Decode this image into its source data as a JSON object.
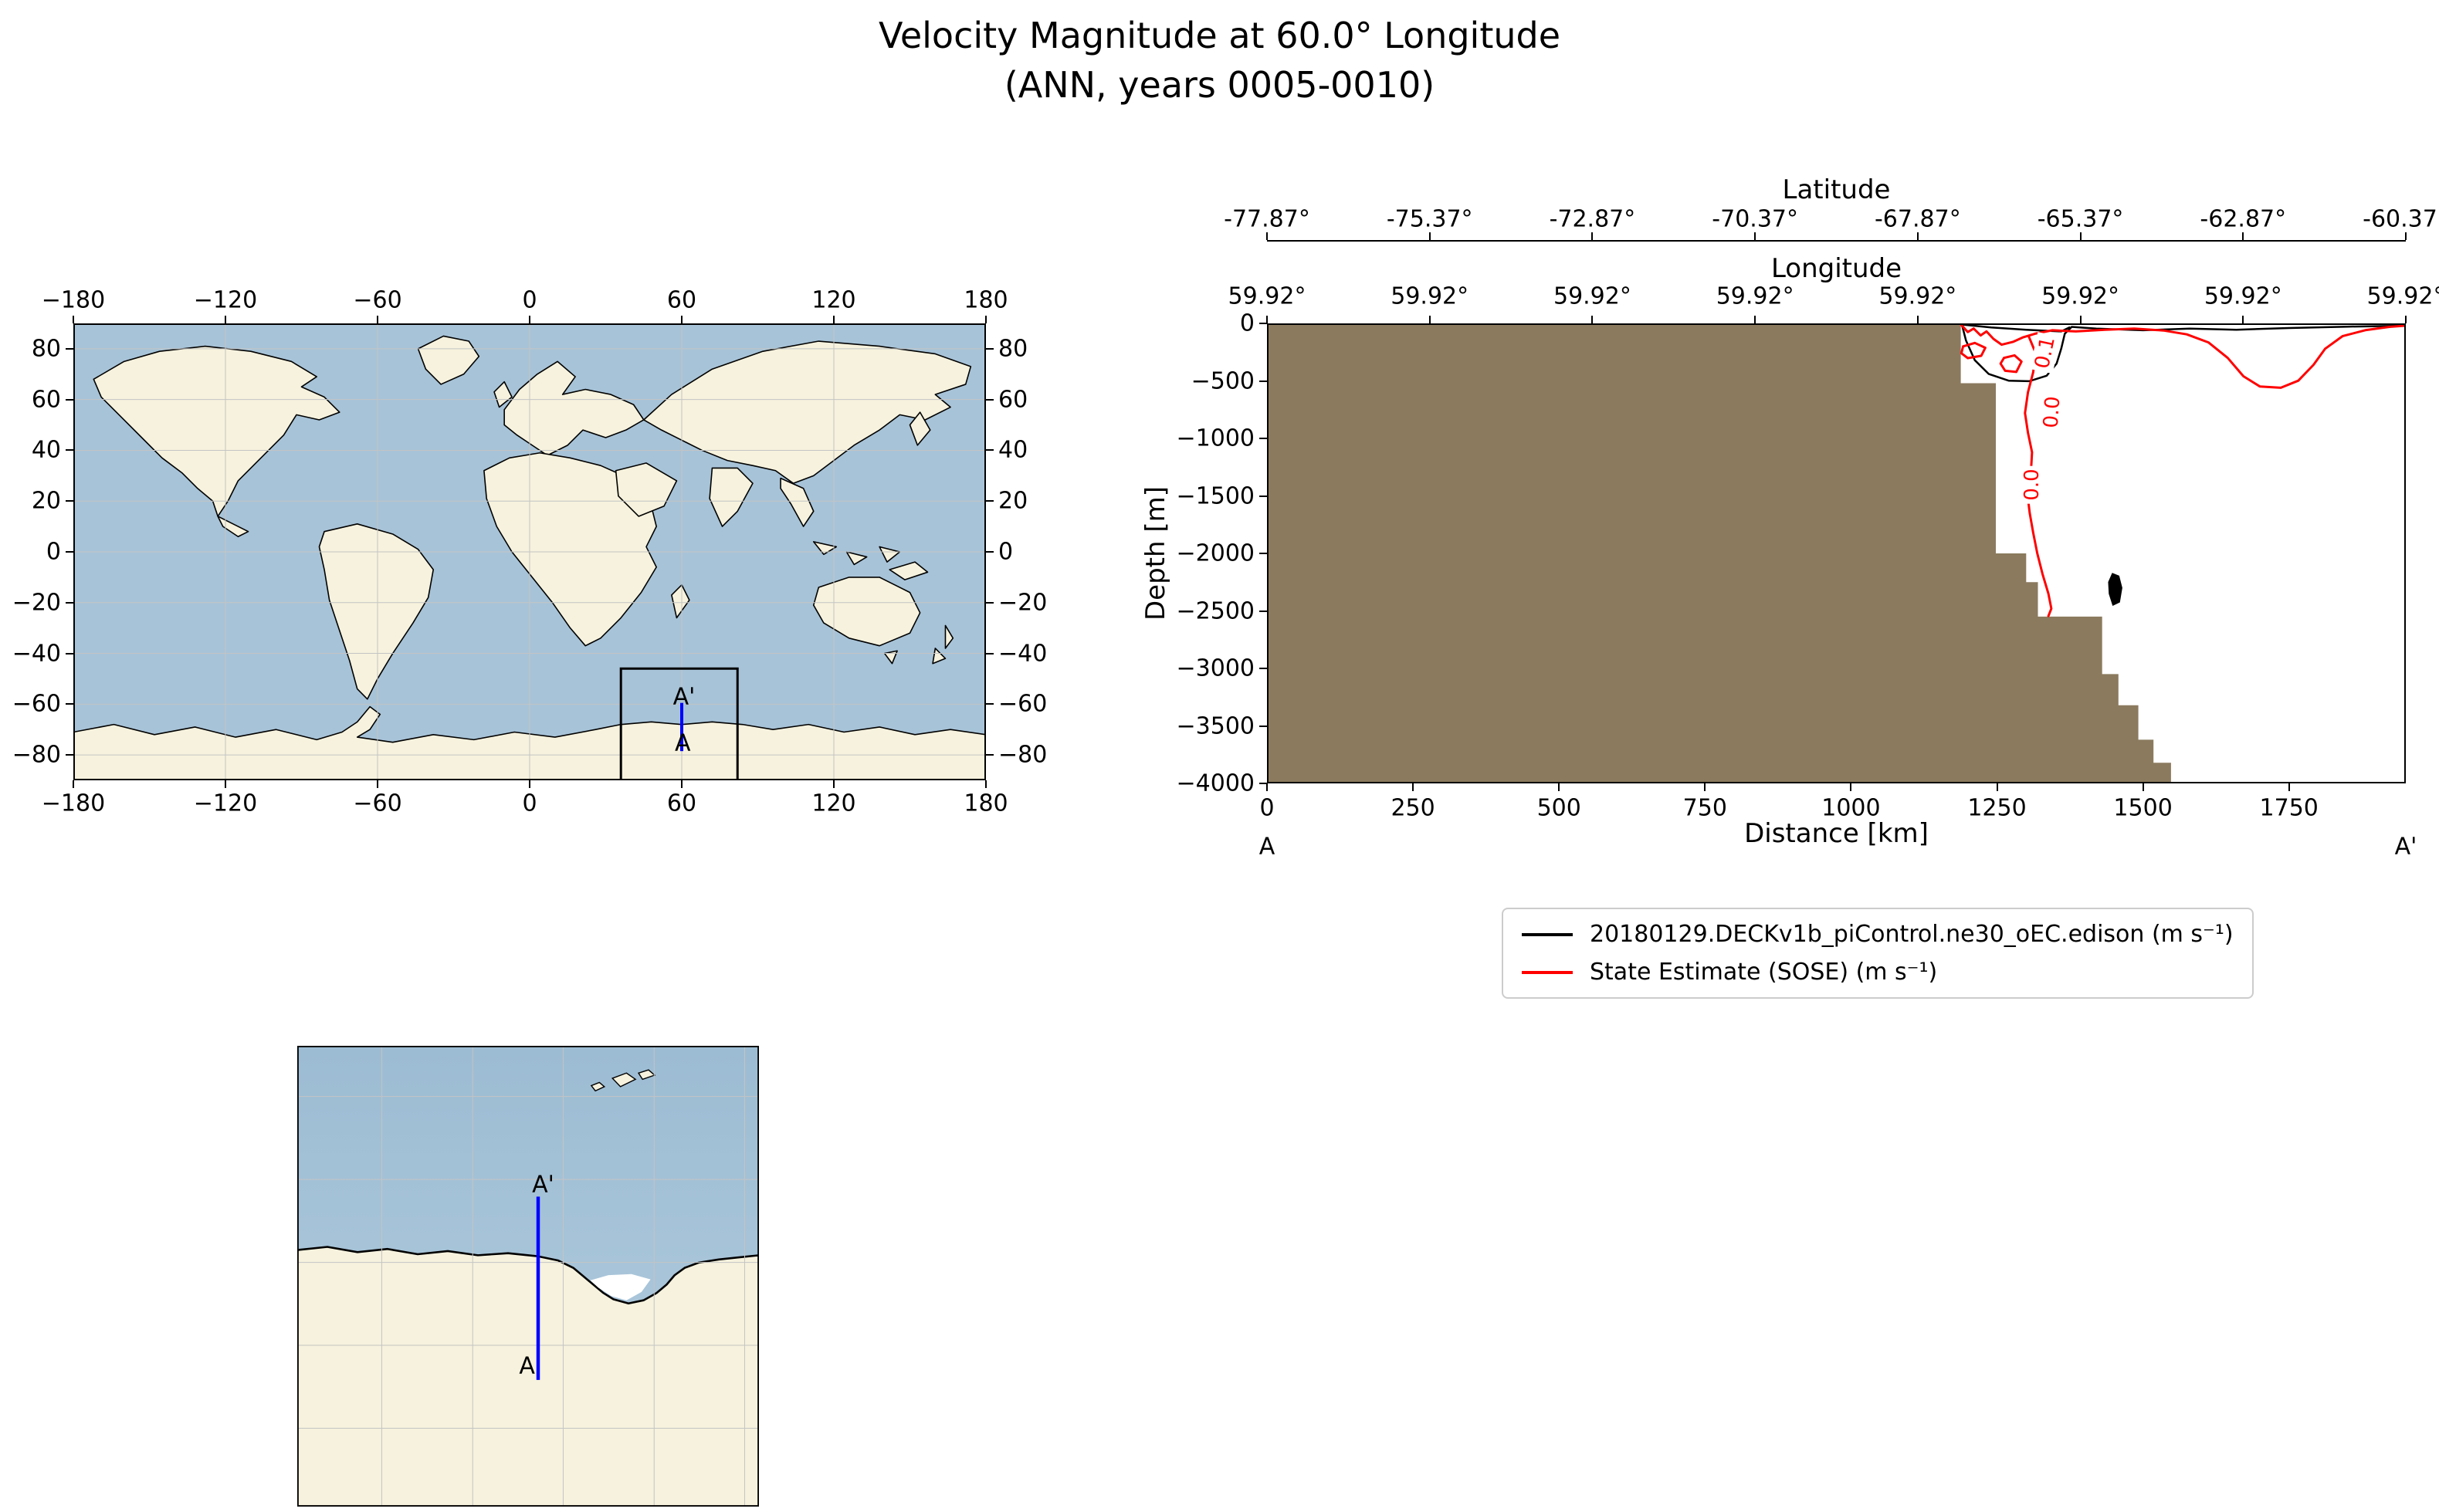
{
  "figure": {
    "title": "Velocity Magnitude at 60.0° Longitude",
    "subtitle": "(ANN, years 0005-0010)"
  },
  "colors": {
    "ocean": "#a7c3d8",
    "ocean_deep": "#9cbcd3",
    "land": "#f6f2dd",
    "coastline": "#000000",
    "grid": "#c4c4c4",
    "bathymetry_fill": "#8b7a5e",
    "transect_line": "#0000ff",
    "roi_box": "#000000",
    "model_contour": "#000000",
    "sose_contour": "#ff0000",
    "ice_shelf": "#ffffff"
  },
  "world_map": {
    "lon_tick_labels": [
      "−180",
      "−120",
      "−60",
      "0",
      "60",
      "120",
      "180"
    ],
    "lon_tick_values": [
      -180,
      -120,
      -60,
      0,
      60,
      120,
      180
    ],
    "lat_tick_labels": [
      "−80",
      "−60",
      "−40",
      "−20",
      "0",
      "20",
      "40",
      "60",
      "80"
    ],
    "lat_tick_values": [
      -80,
      -60,
      -40,
      -20,
      0,
      20,
      40,
      60,
      80
    ],
    "extent": {
      "lon_min": -180,
      "lon_max": 180,
      "lat_min": -90,
      "lat_max": 90
    },
    "roi_box": {
      "lon_min": 36,
      "lon_max": 82,
      "lat_min": -90,
      "lat_max": -46
    },
    "transect": {
      "lon": 60,
      "lat_south": -78.5,
      "lat_north": -59.5
    },
    "labels": {
      "start": "A",
      "end": "A'"
    }
  },
  "zoom_map": {
    "extent": {
      "lon_min": 36,
      "lon_max": 82,
      "lat_min": -90,
      "lat_max": -46
    },
    "transect": {
      "lon": 60,
      "lat_south": -77.9,
      "lat_north": -60.4
    },
    "labels": {
      "start": "A",
      "end": "A'"
    }
  },
  "cross_section": {
    "lat_axis": {
      "label": "Latitude",
      "ticks": [
        "-77.87°",
        "-75.37°",
        "-72.87°",
        "-70.37°",
        "-67.87°",
        "-65.37°",
        "-62.87°",
        "-60.37°"
      ]
    },
    "lon_axis": {
      "label": "Longitude",
      "ticks": [
        "59.92°",
        "59.92°",
        "59.92°",
        "59.92°",
        "59.92°",
        "59.92°",
        "59.92°",
        "59.92°"
      ]
    },
    "xlabel": "Distance [km]",
    "ylabel": "Depth [m]",
    "x_tick_labels": [
      "0",
      "250",
      "500",
      "750",
      "1000",
      "1250",
      "1500",
      "1750"
    ],
    "y_tick_labels": [
      "0",
      "−500",
      "−1000",
      "−1500",
      "−2000",
      "−2500",
      "−3000",
      "−3500",
      "−4000"
    ],
    "endpoints": {
      "start": "A",
      "end": "A'"
    }
  },
  "legend": {
    "entries": [
      {
        "label": "20180129.DECKv1b_piControl.ne30_oEC.edison (m s⁻¹)",
        "color": "#000000"
      },
      {
        "label": "State Estimate (SOSE) (m s⁻¹)",
        "color": "#ff0000"
      }
    ]
  },
  "chart_data": {
    "type": "line",
    "title": "Velocity Magnitude at 60.0° Longitude (ANN, years 0005-0010)",
    "xlabel": "Distance [km]",
    "ylabel": "Depth [m]",
    "xlim": [
      0,
      1950
    ],
    "ylim": [
      -4000,
      0
    ],
    "grid": false,
    "legend_position": "below-right",
    "x_ticks": [
      0,
      250,
      500,
      750,
      1000,
      1250,
      1500,
      1750
    ],
    "y_ticks": [
      0,
      -500,
      -1000,
      -1500,
      -2000,
      -2500,
      -3000,
      -3500,
      -4000
    ],
    "latitude_ticks": [
      -77.87,
      -75.37,
      -72.87,
      -70.37,
      -67.87,
      -65.37,
      -62.87,
      -60.37
    ],
    "longitude_ticks": [
      59.92,
      59.92,
      59.92,
      59.92,
      59.92,
      59.92,
      59.92,
      59.92
    ],
    "bathymetry_surface_profile_km_m": [
      [
        0,
        0
      ],
      [
        1188,
        0
      ],
      [
        1188,
        -520
      ],
      [
        1248,
        -520
      ],
      [
        1248,
        -2000
      ],
      [
        1300,
        -2000
      ],
      [
        1300,
        -2250
      ],
      [
        1320,
        -2250
      ],
      [
        1320,
        -2550
      ],
      [
        1430,
        -2550
      ],
      [
        1430,
        -3050
      ],
      [
        1458,
        -3050
      ],
      [
        1458,
        -3320
      ],
      [
        1492,
        -3320
      ],
      [
        1492,
        -3620
      ],
      [
        1518,
        -3620
      ],
      [
        1518,
        -3820
      ],
      [
        1548,
        -3820
      ],
      [
        1548,
        -4000
      ]
    ],
    "series": [
      {
        "name": "20180129.DECKv1b_piControl.ne30_oEC.edison (m s⁻¹)",
        "color": "#000000",
        "contour_lines_km_m": [
          [
            [
              1190,
              -12
            ],
            [
              1197,
              -150
            ],
            [
              1212,
              -320
            ],
            [
              1236,
              -440
            ],
            [
              1270,
              -498
            ],
            [
              1305,
              -503
            ],
            [
              1335,
              -455
            ],
            [
              1352,
              -350
            ],
            [
              1360,
              -220
            ],
            [
              1366,
              -90
            ],
            [
              1378,
              -30
            ],
            [
              1420,
              -45
            ],
            [
              1500,
              -60
            ],
            [
              1580,
              -45
            ],
            [
              1660,
              -55
            ],
            [
              1750,
              -40
            ],
            [
              1850,
              -28
            ],
            [
              1948,
              -20
            ]
          ],
          [
            [
              1190,
              -10
            ],
            [
              1240,
              -35
            ],
            [
              1300,
              -55
            ],
            [
              1360,
              -70
            ],
            [
              1374,
              -35
            ]
          ]
        ],
        "filled_contours_km_m": [
          [
            [
              1448,
              -2180
            ],
            [
              1458,
              -2200
            ],
            [
              1463,
              -2300
            ],
            [
              1459,
              -2420
            ],
            [
              1449,
              -2445
            ],
            [
              1443,
              -2350
            ],
            [
              1442,
              -2250
            ]
          ]
        ]
      },
      {
        "name": "State Estimate (SOSE) (m s⁻¹)",
        "color": "#ff0000",
        "contour_lines_km_m": [
          [
            [
              1189,
              -15
            ],
            [
              1200,
              -75
            ],
            [
              1210,
              -45
            ],
            [
              1222,
              -105
            ],
            [
              1232,
              -70
            ],
            [
              1244,
              -135
            ],
            [
              1258,
              -185
            ],
            [
              1278,
              -160
            ],
            [
              1295,
              -120
            ],
            [
              1315,
              -90
            ],
            [
              1345,
              -60
            ],
            [
              1385,
              -70
            ],
            [
              1435,
              -55
            ],
            [
              1485,
              -45
            ],
            [
              1535,
              -62
            ],
            [
              1575,
              -95
            ],
            [
              1612,
              -165
            ],
            [
              1645,
              -300
            ],
            [
              1672,
              -460
            ],
            [
              1700,
              -548
            ],
            [
              1736,
              -560
            ],
            [
              1766,
              -498
            ],
            [
              1792,
              -360
            ],
            [
              1812,
              -220
            ],
            [
              1842,
              -110
            ],
            [
              1882,
              -58
            ],
            [
              1922,
              -30
            ],
            [
              1948,
              -20
            ]
          ],
          [
            [
              1305,
              -120
            ],
            [
              1316,
              -255
            ],
            [
              1312,
              -425
            ],
            [
              1303,
              -600
            ],
            [
              1298,
              -780
            ],
            [
              1303,
              -950
            ],
            [
              1310,
              -1120
            ],
            [
              1308,
              -1300
            ],
            [
              1302,
              -1480
            ],
            [
              1306,
              -1650
            ],
            [
              1312,
              -1820
            ],
            [
              1319,
              -2000
            ],
            [
              1328,
              -2180
            ],
            [
              1338,
              -2350
            ],
            [
              1343,
              -2480
            ],
            [
              1338,
              -2545
            ]
          ],
          [
            [
              1192,
              -200
            ],
            [
              1212,
              -170
            ],
            [
              1230,
              -212
            ],
            [
              1223,
              -282
            ],
            [
              1200,
              -302
            ],
            [
              1189,
              -260
            ],
            [
              1192,
              -200
            ]
          ],
          [
            [
              1262,
              -300
            ],
            [
              1280,
              -278
            ],
            [
              1292,
              -332
            ],
            [
              1283,
              -422
            ],
            [
              1264,
              -412
            ],
            [
              1256,
              -350
            ],
            [
              1262,
              -300
            ]
          ]
        ],
        "filled_contours_km_m": []
      }
    ],
    "contour_labels": [
      {
        "text": "0.1",
        "km": 1332,
        "depth": -255,
        "rotation_deg": -78,
        "color": "#ff0000"
      },
      {
        "text": "0.0",
        "km": 1344,
        "depth": -770,
        "rotation_deg": -86,
        "color": "#ff0000"
      },
      {
        "text": "0.0",
        "km": 1310,
        "depth": -1400,
        "rotation_deg": -90,
        "color": "#ff0000"
      }
    ]
  }
}
